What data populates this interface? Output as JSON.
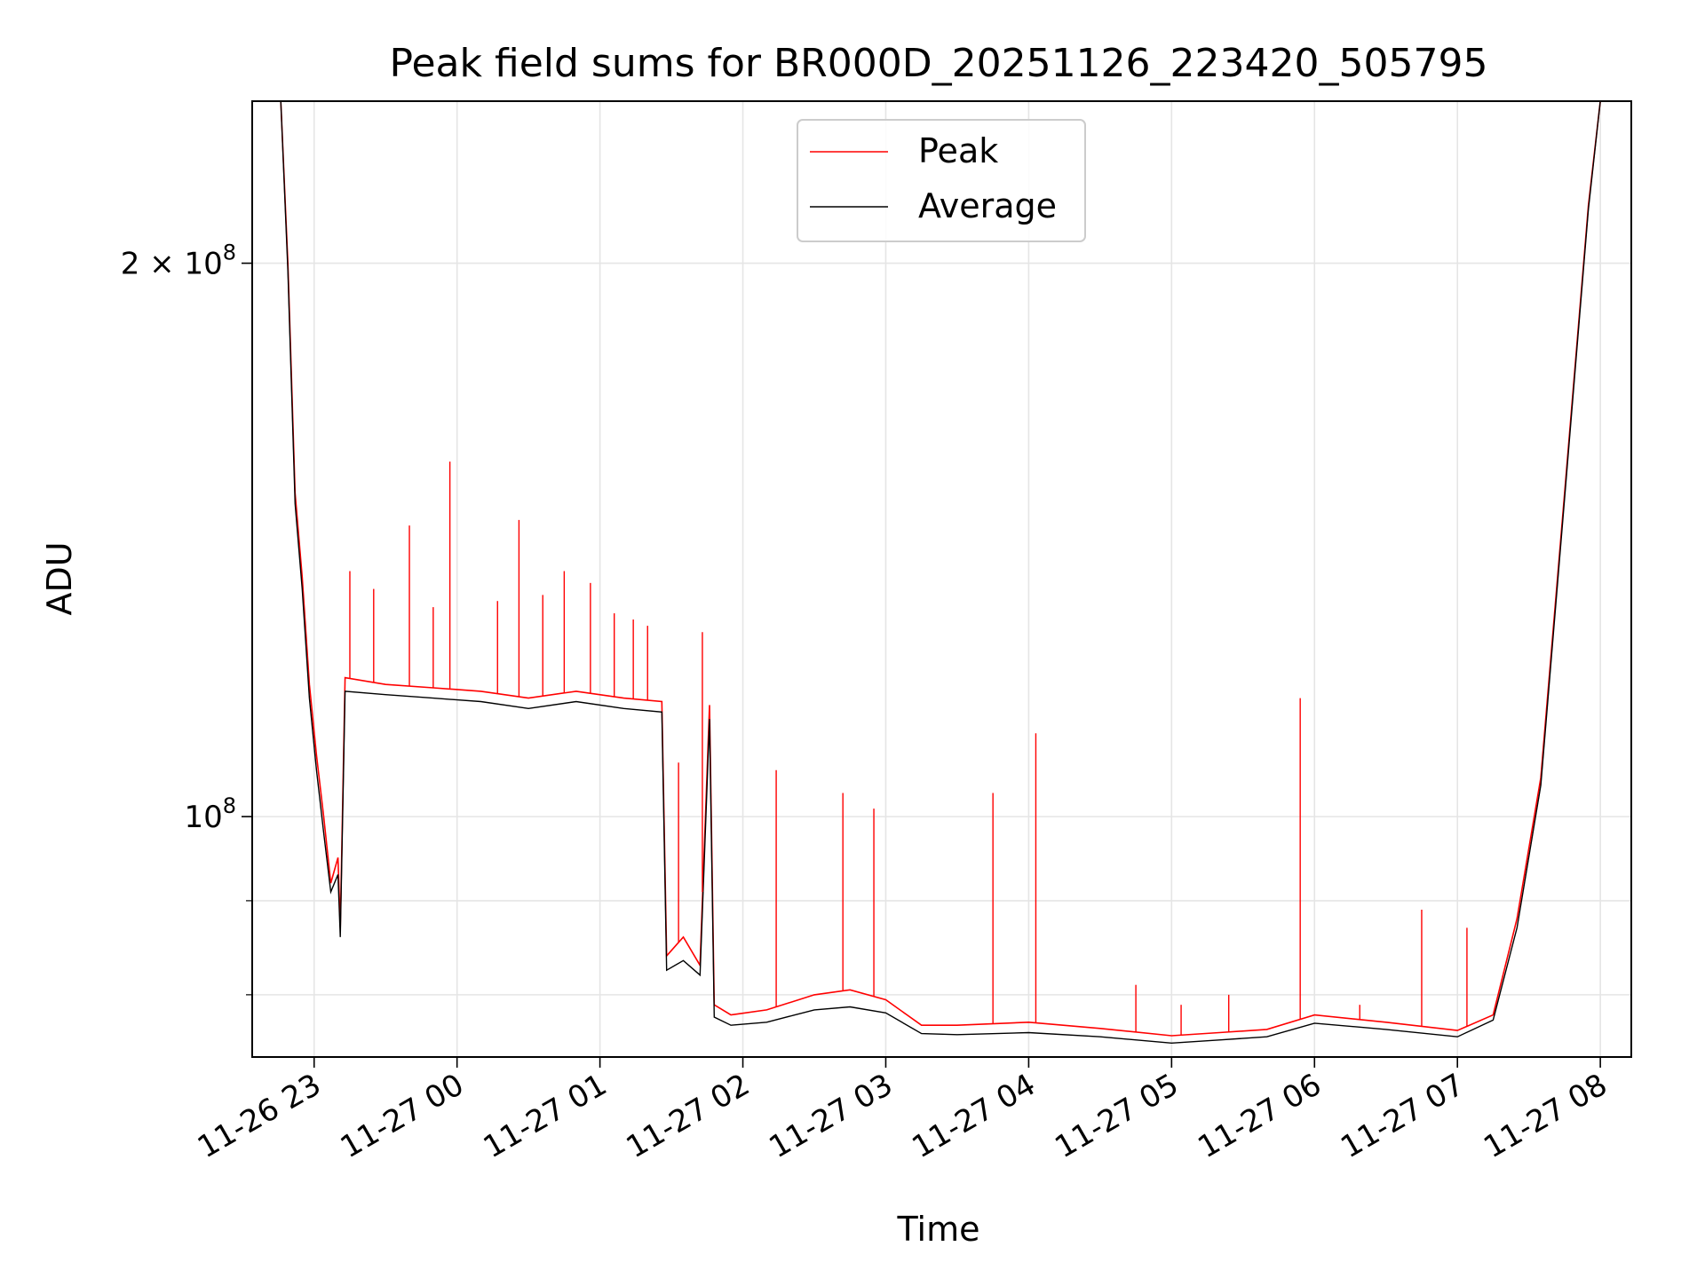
{
  "chart_data": {
    "type": "line",
    "title": "Peak field sums for BR000D_20251126_223420_505795",
    "xlabel": "Time",
    "ylabel": "ADU",
    "yscale": "log",
    "ylim": [
      74000000,
      245000000
    ],
    "xlim": [
      "2025-11-26 22:34",
      "2025-11-27 08:13"
    ],
    "grid": true,
    "legend": {
      "placement": "upper center"
    },
    "x_ticks": [
      "11-26 23",
      "11-27 00",
      "11-27 01",
      "11-27 02",
      "11-27 03",
      "11-27 04",
      "11-27 05",
      "11-27 06",
      "11-27 07",
      "11-27 08"
    ],
    "y_ticks": [
      {
        "label_base": "2 × 10",
        "label_exp": "8",
        "value": 200000000
      },
      {
        "label_base": "10",
        "label_exp": "8",
        "value": 100000000
      }
    ],
    "x": [
      "2025-11-26 22:34",
      "2025-11-26 22:46",
      "2025-11-26 22:49",
      "2025-11-26 22:52",
      "2025-11-26 22:55",
      "2025-11-26 22:58",
      "2025-11-26 23:01",
      "2025-11-26 23:04",
      "2025-11-26 23:07",
      "2025-11-26 23:10",
      "2025-11-26 23:11",
      "2025-11-26 23:13",
      "2025-11-26 23:30",
      "2025-11-26 23:50",
      "2025-11-27 00:10",
      "2025-11-27 00:30",
      "2025-11-27 00:50",
      "2025-11-27 01:10",
      "2025-11-27 01:26",
      "2025-11-27 01:28",
      "2025-11-27 01:35",
      "2025-11-27 01:42",
      "2025-11-27 01:46",
      "2025-11-27 01:48",
      "2025-11-27 01:55",
      "2025-11-27 02:10",
      "2025-11-27 02:30",
      "2025-11-27 02:45",
      "2025-11-27 03:00",
      "2025-11-27 03:15",
      "2025-11-27 03:30",
      "2025-11-27 04:00",
      "2025-11-27 04:30",
      "2025-11-27 05:00",
      "2025-11-27 05:20",
      "2025-11-27 05:40",
      "2025-11-27 06:00",
      "2025-11-27 06:30",
      "2025-11-27 07:00",
      "2025-11-27 07:15",
      "2025-11-27 07:25",
      "2025-11-27 07:35",
      "2025-11-27 07:45",
      "2025-11-27 07:55",
      "2025-11-27 08:00",
      "2025-11-27 08:13"
    ],
    "series": [
      {
        "name": "Peak",
        "color": "#ff0000",
        "values": [
          245000000,
          245000000,
          200000000,
          150000000,
          135000000,
          118000000,
          108000000,
          100000000,
          92000000,
          95000000,
          87000000,
          119000000,
          118000000,
          117500000,
          117000000,
          116000000,
          117000000,
          116000000,
          115500000,
          84000000,
          86000000,
          83000000,
          115000000,
          79000000,
          78000000,
          78500000,
          80000000,
          80500000,
          79500000,
          77000000,
          77000000,
          77300000,
          76700000,
          76000000,
          76300000,
          76600000,
          78000000,
          77300000,
          76500000,
          78000000,
          88000000,
          105000000,
          150000000,
          215000000,
          245000000,
          245000000
        ]
      },
      {
        "name": "Average",
        "color": "#000000",
        "values": [
          245000000,
          245000000,
          198000000,
          148000000,
          133000000,
          116000000,
          106000000,
          98000000,
          91000000,
          93000000,
          86000000,
          117000000,
          116500000,
          116000000,
          115500000,
          114500000,
          115500000,
          114500000,
          114000000,
          82500000,
          83500000,
          82000000,
          113000000,
          77800000,
          77000000,
          77300000,
          78500000,
          78800000,
          78200000,
          76200000,
          76100000,
          76300000,
          75900000,
          75300000,
          75600000,
          75900000,
          77200000,
          76600000,
          75900000,
          77500000,
          87000000,
          104000000,
          149000000,
          214000000,
          245000000,
          245000000
        ]
      }
    ],
    "spikes": [
      {
        "x": "2025-11-26 23:15",
        "y": 136000000
      },
      {
        "x": "2025-11-26 23:25",
        "y": 133000000
      },
      {
        "x": "2025-11-26 23:40",
        "y": 144000000
      },
      {
        "x": "2025-11-26 23:50",
        "y": 130000000
      },
      {
        "x": "2025-11-26 23:57",
        "y": 156000000
      },
      {
        "x": "2025-11-27 00:17",
        "y": 131000000
      },
      {
        "x": "2025-11-27 00:26",
        "y": 145000000
      },
      {
        "x": "2025-11-27 00:36",
        "y": 132000000
      },
      {
        "x": "2025-11-27 00:45",
        "y": 136000000
      },
      {
        "x": "2025-11-27 00:56",
        "y": 134000000
      },
      {
        "x": "2025-11-27 01:06",
        "y": 129000000
      },
      {
        "x": "2025-11-27 01:14",
        "y": 128000000
      },
      {
        "x": "2025-11-27 01:20",
        "y": 127000000
      },
      {
        "x": "2025-11-27 01:33",
        "y": 107000000
      },
      {
        "x": "2025-11-27 01:43",
        "y": 126000000
      },
      {
        "x": "2025-11-27 02:14",
        "y": 106000000
      },
      {
        "x": "2025-11-27 02:42",
        "y": 103000000
      },
      {
        "x": "2025-11-27 02:55",
        "y": 101000000
      },
      {
        "x": "2025-11-27 03:45",
        "y": 103000000
      },
      {
        "x": "2025-11-27 04:03",
        "y": 111000000
      },
      {
        "x": "2025-11-27 04:45",
        "y": 81000000
      },
      {
        "x": "2025-11-27 05:04",
        "y": 79000000
      },
      {
        "x": "2025-11-27 05:24",
        "y": 80000000
      },
      {
        "x": "2025-11-27 05:54",
        "y": 116000000
      },
      {
        "x": "2025-11-27 06:19",
        "y": 79000000
      },
      {
        "x": "2025-11-27 06:45",
        "y": 89000000
      },
      {
        "x": "2025-11-27 07:04",
        "y": 87000000
      }
    ]
  }
}
